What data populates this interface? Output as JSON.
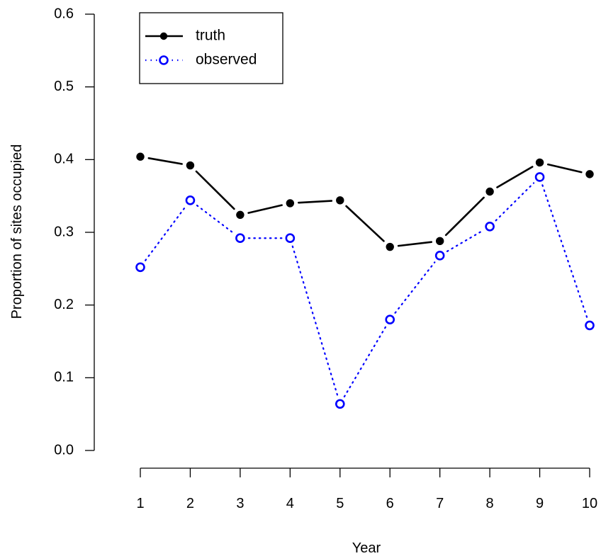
{
  "chart_data": {
    "type": "line",
    "xlabel": "Year",
    "ylabel": "Proportion of sites occupied",
    "x": [
      1,
      2,
      3,
      4,
      5,
      6,
      7,
      8,
      9,
      10
    ],
    "xticks": [
      "1",
      "2",
      "3",
      "4",
      "5",
      "6",
      "7",
      "8",
      "9",
      "10"
    ],
    "yticks": [
      "0.0",
      "0.1",
      "0.2",
      "0.3",
      "0.4",
      "0.5",
      "0.6"
    ],
    "ylim": [
      0,
      0.6
    ],
    "xlim": [
      1,
      10
    ],
    "grid": false,
    "legend_position": "top-left",
    "series": [
      {
        "name": "truth",
        "color": "#000000",
        "line_style": "solid",
        "marker": "filled-circle",
        "values": [
          0.404,
          0.392,
          0.324,
          0.34,
          0.344,
          0.28,
          0.288,
          0.356,
          0.396,
          0.38
        ]
      },
      {
        "name": "observed",
        "color": "#0000ff",
        "line_style": "dotted",
        "marker": "open-circle",
        "values": [
          0.252,
          0.344,
          0.292,
          0.292,
          0.064,
          0.18,
          0.268,
          0.308,
          0.376,
          0.172
        ]
      }
    ]
  }
}
